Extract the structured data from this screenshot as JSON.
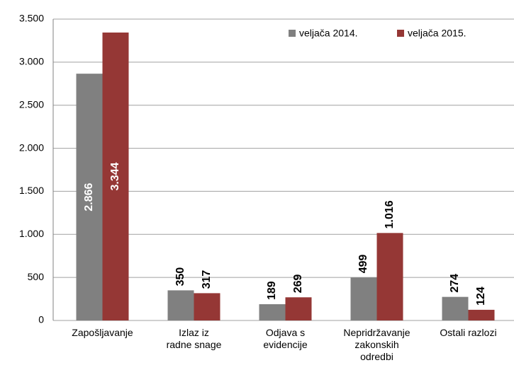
{
  "chart_data": {
    "type": "bar",
    "categories": [
      [
        "Zapošljavanje"
      ],
      [
        "Izlaz iz",
        "radne snage"
      ],
      [
        "Odjava s",
        "evidencije"
      ],
      [
        "Nepridržavanje",
        "zakonskih",
        "odredbi"
      ],
      [
        "Ostali razlozi"
      ]
    ],
    "series": [
      {
        "name": "veljača 2014.",
        "color": "#808080",
        "values": [
          2866,
          350,
          189,
          499,
          274
        ],
        "value_labels": [
          "2.866",
          "350",
          "189",
          "499",
          "274"
        ]
      },
      {
        "name": "veljača 2015.",
        "color": "#953735",
        "values": [
          3344,
          317,
          269,
          1016,
          124
        ],
        "value_labels": [
          "3.344",
          "317",
          "269",
          "1.016",
          "124"
        ]
      }
    ],
    "ylim": [
      0,
      3500
    ],
    "yticks": [
      0,
      500,
      {
        "value": 1000,
        "label": "1.000"
      },
      {
        "value": 1500,
        "label": "1.500"
      },
      {
        "value": 2000,
        "label": "2.000"
      },
      {
        "value": 2500,
        "label": "2.500"
      },
      {
        "value": 3000,
        "label": "3.000"
      },
      {
        "value": 3500,
        "label": "3.500"
      }
    ],
    "grid": true,
    "legend": "top-right"
  }
}
